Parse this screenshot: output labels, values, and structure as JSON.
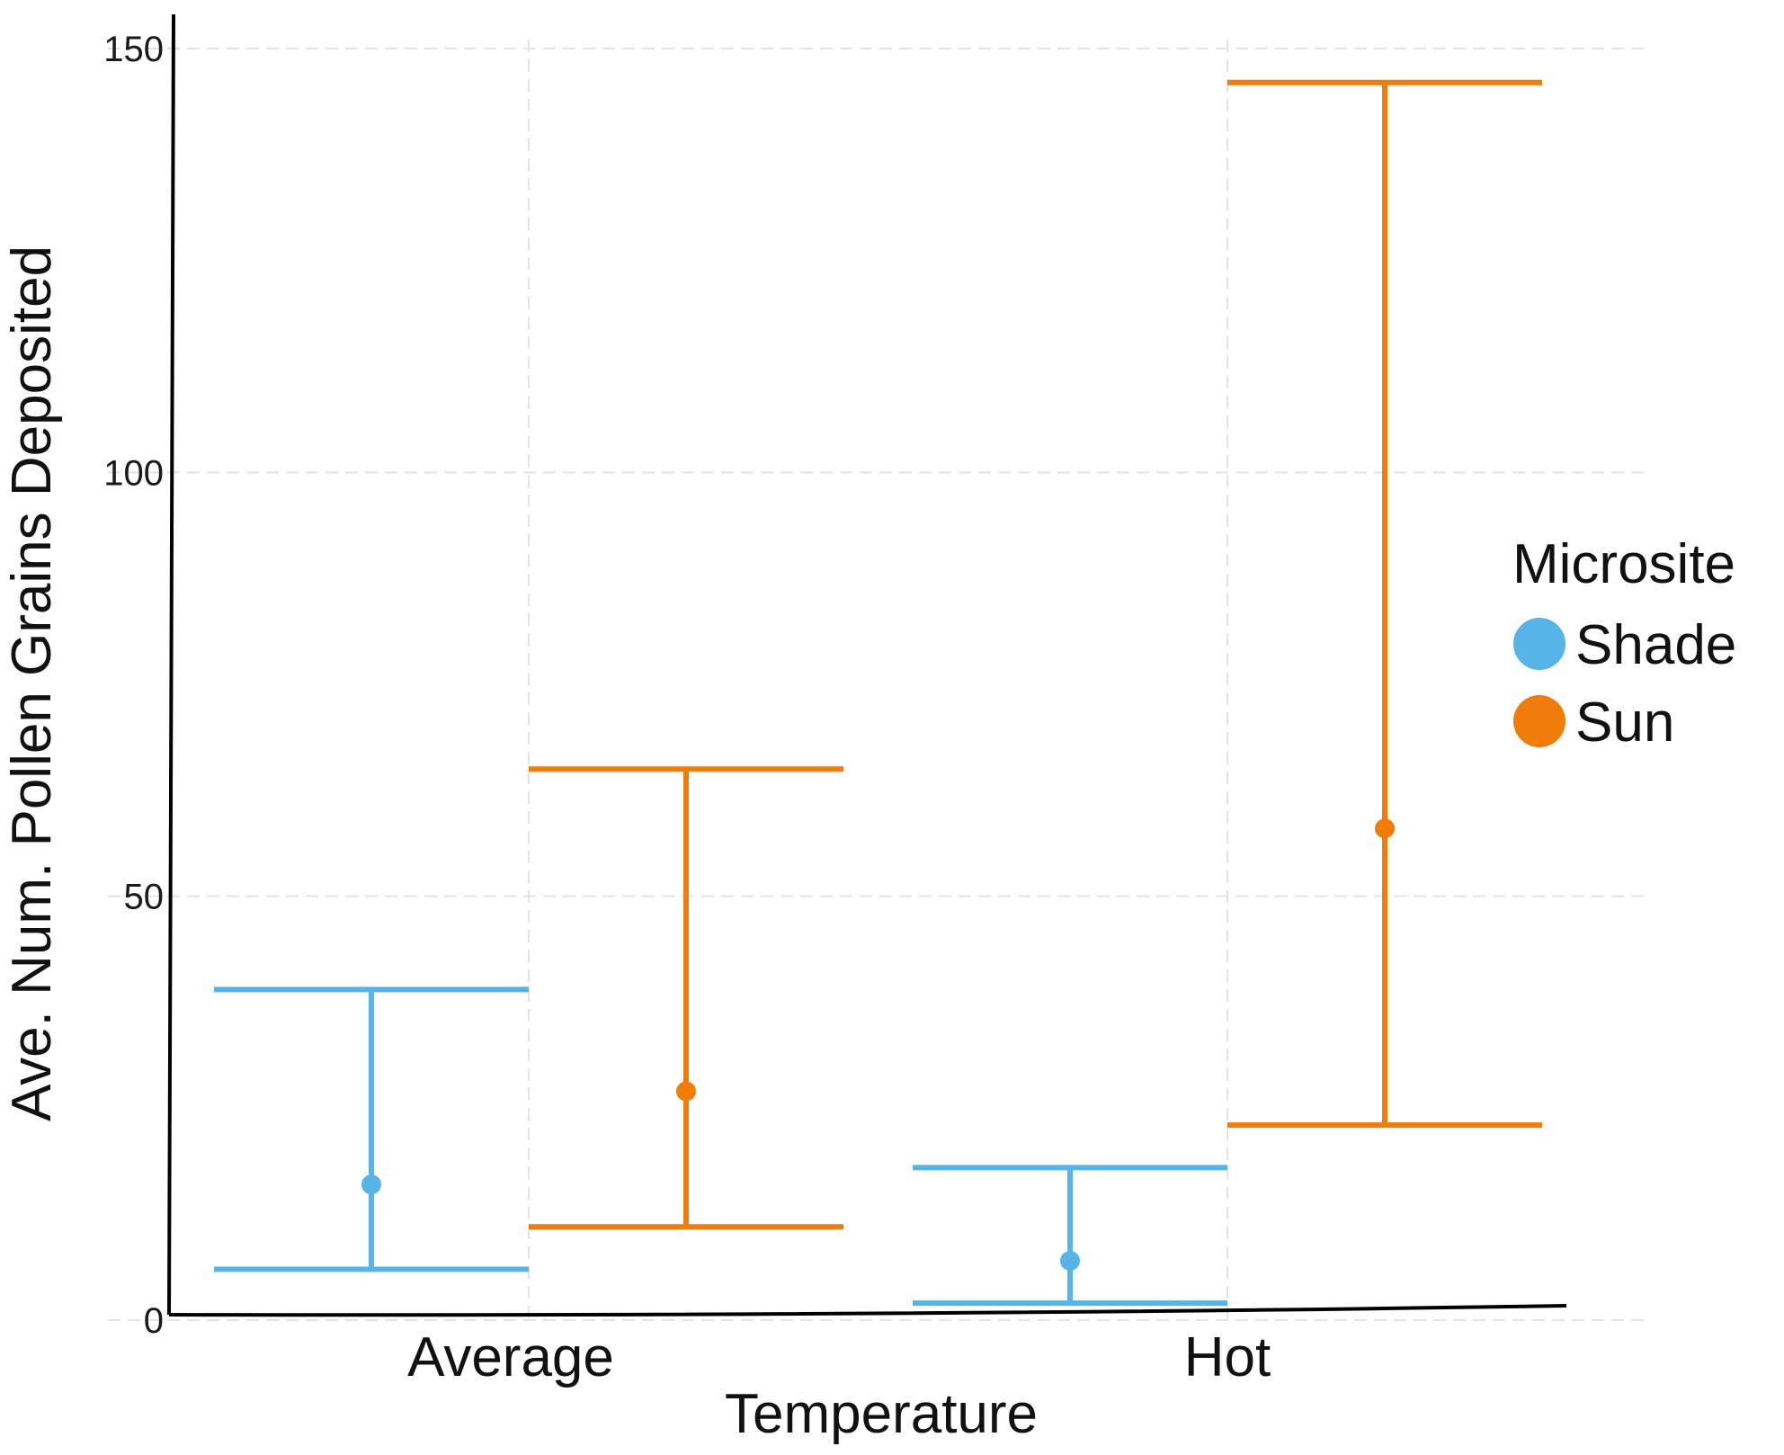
{
  "chart_data": {
    "type": "errorbar",
    "xlabel": "Temperature",
    "ylabel": "Ave. Num. Pollen Grains Deposited",
    "ylim": [
      0,
      150
    ],
    "yticks": [
      0,
      50,
      100,
      150
    ],
    "categories": [
      "Average",
      "Hot"
    ],
    "legend": {
      "title": "Microsite",
      "position": "right"
    },
    "grid": true,
    "series": [
      {
        "name": "Shade",
        "color": "#56B4E9",
        "points": [
          {
            "category": "Average",
            "mean": 16,
            "lower": 6,
            "upper": 39
          },
          {
            "category": "Hot",
            "mean": 7,
            "lower": 2,
            "upper": 18
          }
        ]
      },
      {
        "name": "Sun",
        "color": "#F07C0A",
        "points": [
          {
            "category": "Average",
            "mean": 27,
            "lower": 11,
            "upper": 65
          },
          {
            "category": "Hot",
            "mean": 58,
            "lower": 23,
            "upper": 146
          }
        ]
      }
    ]
  }
}
